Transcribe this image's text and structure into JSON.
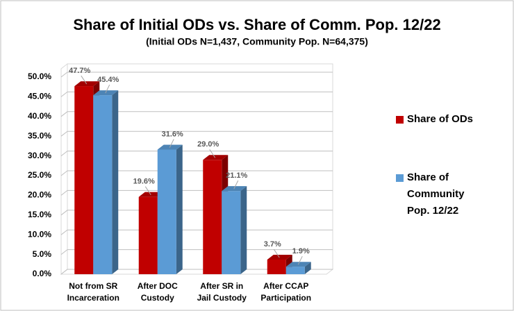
{
  "chart_data": {
    "type": "bar3d",
    "title": "Share of Initial ODs vs. Share of Comm. Pop. 12/22",
    "subtitle": "(Initial ODs N=1,437, Community Pop. N=64,375)",
    "categories": [
      [
        "Not from SR",
        "Incarceration"
      ],
      [
        "After DOC",
        "Custody"
      ],
      [
        "After SR in",
        "Jail Custody"
      ],
      [
        "After CCAP",
        "Participation"
      ]
    ],
    "series": [
      {
        "name": "Share of ODs",
        "color": "#c00000",
        "values": [
          47.7,
          19.6,
          29.0,
          3.7
        ],
        "value_labels": [
          "47.7%",
          "19.6%",
          "29.0%",
          "3.7%"
        ]
      },
      {
        "name": "Share of Community Pop. 12/22",
        "color": "#5b9bd5",
        "values": [
          45.4,
          31.6,
          21.1,
          1.9
        ],
        "value_labels": [
          "45.4%",
          "31.6%",
          "21.1%",
          "1.9%"
        ]
      }
    ],
    "ylim": [
      0,
      50
    ],
    "yticks": [
      {
        "value": 0,
        "label": "0.0%"
      },
      {
        "value": 5,
        "label": "5.0%"
      },
      {
        "value": 10,
        "label": "10.0%"
      },
      {
        "value": 15,
        "label": "15.0%"
      },
      {
        "value": 20,
        "label": "20.0%"
      },
      {
        "value": 25,
        "label": "25.0%"
      },
      {
        "value": 30,
        "label": "30.0%"
      },
      {
        "value": 35,
        "label": "35.0%"
      },
      {
        "value": 40,
        "label": "40.0%"
      },
      {
        "value": 45,
        "label": "45.0%"
      },
      {
        "value": 50,
        "label": "50.0%"
      }
    ],
    "grid": true,
    "legend": "right"
  }
}
